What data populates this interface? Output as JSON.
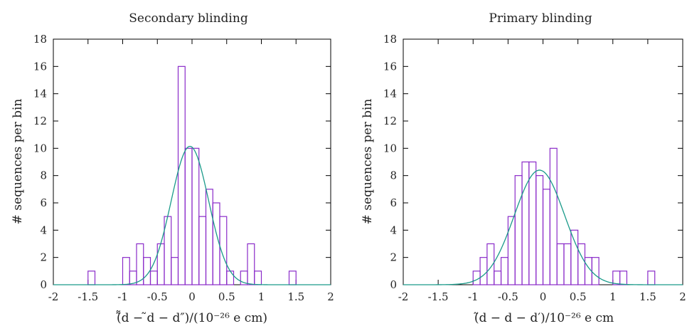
{
  "chart_data": [
    {
      "type": "bar",
      "title": "Secondary blinding",
      "xlabel": "(̃̃d − ̃d − d″)/(10⁻²⁶ e cm)",
      "ylabel": "# sequences per bin",
      "xlim": [
        -2,
        2
      ],
      "ylim": [
        0,
        18
      ],
      "xticks": [
        "-2",
        "-1.5",
        "-1",
        "-0.5",
        "0",
        "0.5",
        "1",
        "1.5",
        "2"
      ],
      "yticks": [
        "0",
        "2",
        "4",
        "6",
        "8",
        "10",
        "12",
        "14",
        "16",
        "18"
      ],
      "bin_width": 0.1,
      "bins": [
        {
          "x": -1.45,
          "value": 1
        },
        {
          "x": -0.95,
          "value": 2
        },
        {
          "x": -0.85,
          "value": 1
        },
        {
          "x": -0.75,
          "value": 3
        },
        {
          "x": -0.65,
          "value": 2
        },
        {
          "x": -0.55,
          "value": 1
        },
        {
          "x": -0.45,
          "value": 3
        },
        {
          "x": -0.35,
          "value": 5
        },
        {
          "x": -0.25,
          "value": 2
        },
        {
          "x": -0.15,
          "value": 16
        },
        {
          "x": -0.05,
          "value": 10
        },
        {
          "x": 0.05,
          "value": 10
        },
        {
          "x": 0.15,
          "value": 5
        },
        {
          "x": 0.25,
          "value": 7
        },
        {
          "x": 0.35,
          "value": 6
        },
        {
          "x": 0.45,
          "value": 5
        },
        {
          "x": 0.55,
          "value": 1
        },
        {
          "x": 0.75,
          "value": 1
        },
        {
          "x": 0.85,
          "value": 3
        },
        {
          "x": 0.95,
          "value": 1
        },
        {
          "x": 1.45,
          "value": 1
        }
      ],
      "fit": {
        "amplitude": 10.15,
        "mean": -0.03,
        "sigma": 0.27
      },
      "colors": {
        "bars": "#8a2bc9",
        "fit": "#1a9a8a"
      }
    },
    {
      "type": "bar",
      "title": "Primary blinding",
      "xlabel": "(̃d − d − d′)/10⁻²⁶ e cm",
      "ylabel": "# sequences per bin",
      "xlim": [
        -2,
        2
      ],
      "ylim": [
        0,
        18
      ],
      "xticks": [
        "-2",
        "-1.5",
        "-1",
        "-0.5",
        "0",
        "0.5",
        "1",
        "1.5",
        "2"
      ],
      "yticks": [
        "0",
        "2",
        "4",
        "6",
        "8",
        "10",
        "12",
        "14",
        "16",
        "18"
      ],
      "bin_width": 0.1,
      "bins": [
        {
          "x": -0.95,
          "value": 1
        },
        {
          "x": -0.85,
          "value": 2
        },
        {
          "x": -0.75,
          "value": 3
        },
        {
          "x": -0.65,
          "value": 1
        },
        {
          "x": -0.55,
          "value": 2
        },
        {
          "x": -0.45,
          "value": 5
        },
        {
          "x": -0.35,
          "value": 8
        },
        {
          "x": -0.25,
          "value": 9
        },
        {
          "x": -0.15,
          "value": 9
        },
        {
          "x": -0.05,
          "value": 8
        },
        {
          "x": 0.05,
          "value": 7
        },
        {
          "x": 0.15,
          "value": 10
        },
        {
          "x": 0.25,
          "value": 3
        },
        {
          "x": 0.35,
          "value": 3
        },
        {
          "x": 0.45,
          "value": 4
        },
        {
          "x": 0.55,
          "value": 3
        },
        {
          "x": 0.65,
          "value": 2
        },
        {
          "x": 0.75,
          "value": 2
        },
        {
          "x": 1.05,
          "value": 1
        },
        {
          "x": 1.15,
          "value": 1
        },
        {
          "x": 1.55,
          "value": 1
        }
      ],
      "fit": {
        "amplitude": 8.4,
        "mean": -0.05,
        "sigma": 0.36
      },
      "colors": {
        "bars": "#8a2bc9",
        "fit": "#1a9a8a"
      }
    }
  ]
}
